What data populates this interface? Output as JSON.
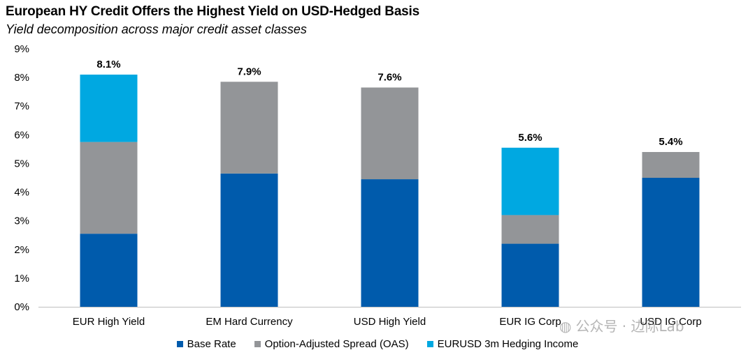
{
  "header": {
    "title": "European HY Credit Offers the Highest Yield on USD-Hedged Basis",
    "subtitle": "Yield decomposition across major credit asset classes"
  },
  "watermark": {
    "text": "公众号 · 边际Lab",
    "icon": "wechat-icon"
  },
  "colors": {
    "base_rate": "#005BAC",
    "oas": "#939598",
    "hedging": "#00A8E1"
  },
  "chart_data": {
    "type": "bar",
    "stacked": true,
    "title": "European HY Credit Offers the Highest Yield on USD-Hedged Basis",
    "subtitle": "Yield decomposition across major credit asset classes",
    "categories": [
      "EUR High Yield",
      "EM Hard Currency",
      "USD High Yield",
      "EUR IG Corp",
      "USD IG Corp"
    ],
    "series": [
      {
        "name": "Base Rate",
        "values": [
          2.55,
          4.65,
          4.45,
          2.2,
          4.5
        ]
      },
      {
        "name": "Option-Adjusted Spread (OAS)",
        "values": [
          3.2,
          3.2,
          3.2,
          1.0,
          0.9
        ]
      },
      {
        "name": "EURUSD 3m Hedging Income",
        "values": [
          2.35,
          0,
          0,
          2.35,
          0
        ]
      }
    ],
    "totals": [
      "8.1%",
      "7.9%",
      "7.6%",
      "5.6%",
      "5.4%"
    ],
    "ylim": [
      0,
      9
    ],
    "yticks": [
      0,
      1,
      2,
      3,
      4,
      5,
      6,
      7,
      8,
      9
    ],
    "ytick_labels": [
      "0%",
      "1%",
      "2%",
      "3%",
      "4%",
      "5%",
      "6%",
      "7%",
      "8%",
      "9%"
    ],
    "xlabel": "",
    "ylabel": "",
    "grid": false,
    "legend_position": "bottom"
  }
}
